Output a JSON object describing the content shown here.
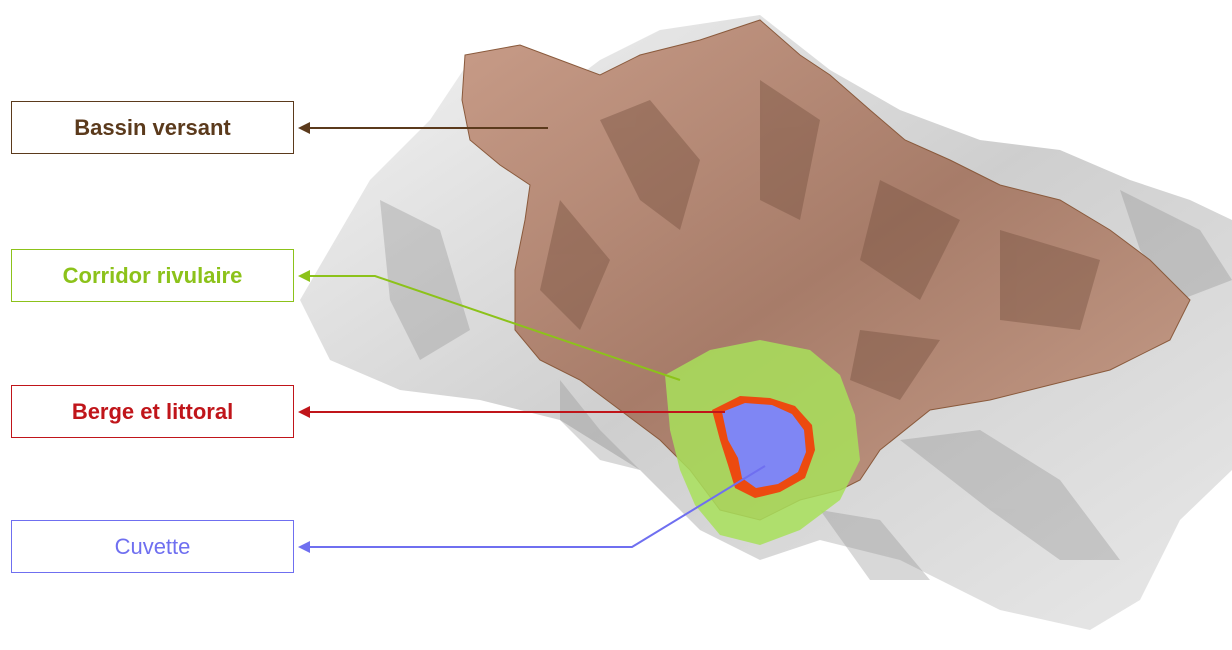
{
  "labels": {
    "bassin_versant": "Bassin versant",
    "corridor_rivulaire": "Corridor rivulaire",
    "berge_littoral": "Berge et littoral",
    "cuvette": "Cuvette"
  },
  "colors": {
    "bassin_versant": "#5b3a1c",
    "corridor_rivulaire": "#8cc21a",
    "berge_littoral": "#c0151a",
    "cuvette": "#6f6ff0",
    "watershed_fill": "#b88c7a",
    "riparian_fill": "#a8e05a",
    "shore_fill": "#ec4a10",
    "lake_fill": "#7f86f4"
  }
}
